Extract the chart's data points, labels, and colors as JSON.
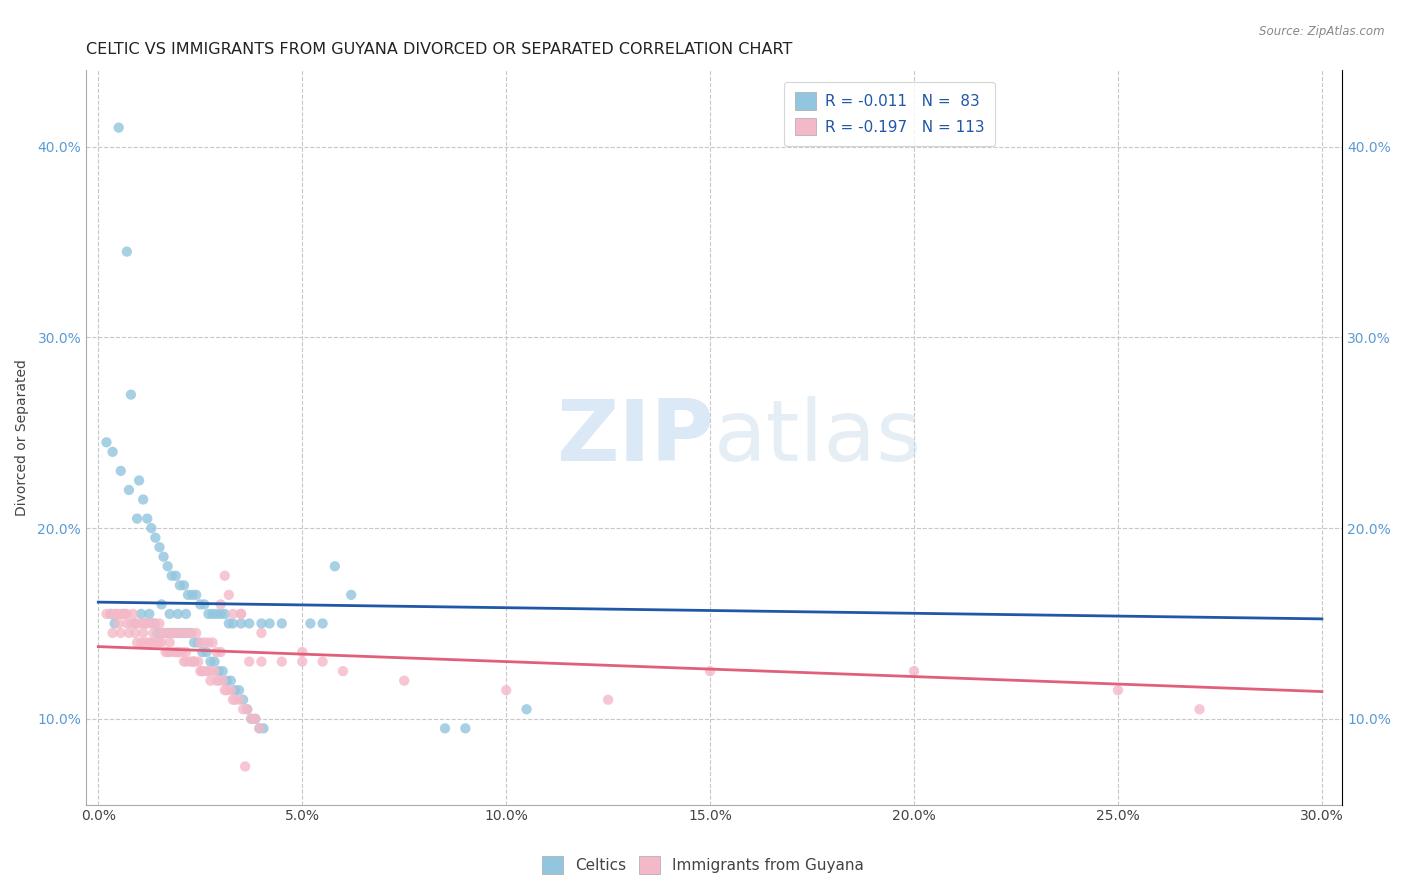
{
  "title": "CELTIC VS IMMIGRANTS FROM GUYANA DIVORCED OR SEPARATED CORRELATION CHART",
  "source": "Source: ZipAtlas.com",
  "xlabel_vals": [
    0.0,
    5.0,
    10.0,
    15.0,
    20.0,
    25.0,
    30.0
  ],
  "ylabel_vals": [
    10.0,
    20.0,
    30.0,
    40.0
  ],
  "xlim": [
    -0.3,
    30.5
  ],
  "ylim": [
    5.5,
    44.0
  ],
  "watermark_zip": "ZIP",
  "watermark_atlas": "atlas",
  "legend_celtics_r": "R = -0.011",
  "legend_celtics_n": "N =  83",
  "legend_guyana_r": "R = -0.197",
  "legend_guyana_n": "N = 113",
  "celtics_color": "#92c5de",
  "guyana_color": "#f4b9c8",
  "trend_celtics_color": "#2057a7",
  "trend_guyana_color": "#e0607a",
  "celtics_x": [
    0.5,
    0.7,
    0.8,
    1.0,
    1.1,
    1.2,
    1.3,
    1.4,
    1.5,
    1.6,
    1.7,
    1.8,
    1.9,
    2.0,
    2.1,
    2.2,
    2.3,
    2.4,
    2.5,
    2.6,
    2.7,
    2.8,
    2.9,
    3.0,
    3.1,
    3.2,
    3.3,
    3.5,
    3.7,
    4.0,
    4.2,
    4.5,
    5.2,
    5.5,
    0.3,
    0.4,
    0.6,
    0.9,
    1.05,
    1.15,
    1.25,
    1.35,
    1.45,
    1.55,
    1.65,
    1.75,
    1.85,
    1.95,
    2.05,
    2.15,
    2.25,
    2.35,
    2.45,
    2.55,
    2.65,
    2.75,
    2.85,
    2.95,
    3.05,
    3.15,
    3.25,
    3.35,
    3.45,
    3.55,
    3.65,
    3.75,
    3.85,
    3.95,
    4.05,
    8.5,
    9.0,
    10.5,
    5.8,
    6.2,
    0.2,
    0.35,
    0.55,
    0.75,
    0.95,
    1.55,
    1.75,
    1.95,
    2.15
  ],
  "celtics_y": [
    41.0,
    34.5,
    27.0,
    22.5,
    21.5,
    20.5,
    20.0,
    19.5,
    19.0,
    18.5,
    18.0,
    17.5,
    17.5,
    17.0,
    17.0,
    16.5,
    16.5,
    16.5,
    16.0,
    16.0,
    15.5,
    15.5,
    15.5,
    15.5,
    15.5,
    15.0,
    15.0,
    15.0,
    15.0,
    15.0,
    15.0,
    15.0,
    15.0,
    15.0,
    15.5,
    15.0,
    15.5,
    15.0,
    15.5,
    15.0,
    15.5,
    15.0,
    14.5,
    14.5,
    14.5,
    14.5,
    14.5,
    14.5,
    14.5,
    14.5,
    14.5,
    14.0,
    14.0,
    13.5,
    13.5,
    13.0,
    13.0,
    12.5,
    12.5,
    12.0,
    12.0,
    11.5,
    11.5,
    11.0,
    10.5,
    10.0,
    10.0,
    9.5,
    9.5,
    9.5,
    9.5,
    10.5,
    18.0,
    16.5,
    24.5,
    24.0,
    23.0,
    22.0,
    20.5,
    16.0,
    15.5,
    15.5,
    15.5
  ],
  "guyana_x": [
    0.2,
    0.3,
    0.4,
    0.5,
    0.6,
    0.7,
    0.8,
    0.9,
    1.0,
    1.1,
    1.2,
    1.3,
    1.4,
    1.5,
    1.6,
    1.7,
    1.8,
    1.9,
    2.0,
    2.1,
    2.2,
    2.3,
    2.4,
    2.5,
    2.6,
    2.7,
    2.8,
    2.9,
    3.0,
    3.1,
    3.2,
    3.3,
    3.5,
    3.7,
    4.0,
    4.5,
    5.0,
    5.5,
    7.5,
    10.0,
    12.5,
    15.0,
    20.0,
    25.0,
    27.0,
    0.35,
    0.55,
    0.75,
    0.95,
    1.05,
    1.15,
    1.25,
    1.35,
    1.45,
    1.55,
    1.65,
    1.75,
    1.85,
    1.95,
    2.05,
    2.15,
    2.25,
    2.35,
    2.45,
    2.55,
    2.65,
    2.75,
    2.85,
    2.95,
    3.05,
    3.15,
    3.25,
    3.35,
    3.45,
    3.55,
    3.65,
    3.75,
    3.85,
    3.95,
    0.45,
    0.65,
    0.85,
    1.15,
    1.35,
    1.55,
    1.75,
    1.95,
    2.15,
    2.35,
    2.55,
    2.75,
    3.0,
    3.5,
    4.0,
    5.0,
    6.0,
    0.5,
    0.7,
    0.9,
    1.1,
    1.3,
    1.5,
    1.7,
    1.9,
    2.1,
    2.3,
    2.5,
    2.7,
    2.9,
    3.1,
    3.3,
    3.6
  ],
  "guyana_y": [
    15.5,
    15.5,
    15.5,
    15.5,
    15.5,
    15.5,
    15.0,
    15.0,
    15.0,
    15.0,
    15.0,
    15.0,
    15.0,
    15.0,
    14.5,
    14.5,
    14.5,
    14.5,
    14.5,
    14.5,
    14.5,
    14.5,
    14.5,
    14.0,
    14.0,
    14.0,
    14.0,
    13.5,
    13.5,
    17.5,
    16.5,
    15.5,
    15.5,
    13.0,
    13.0,
    13.0,
    13.0,
    13.0,
    12.0,
    11.5,
    11.0,
    12.5,
    12.5,
    11.5,
    10.5,
    14.5,
    14.5,
    14.5,
    14.0,
    14.0,
    14.0,
    14.0,
    14.0,
    14.0,
    14.0,
    13.5,
    13.5,
    13.5,
    13.5,
    13.5,
    13.0,
    13.0,
    13.0,
    13.0,
    12.5,
    12.5,
    12.5,
    12.5,
    12.0,
    12.0,
    11.5,
    11.5,
    11.0,
    11.0,
    10.5,
    10.5,
    10.0,
    10.0,
    9.5,
    15.5,
    15.5,
    15.5,
    15.0,
    14.5,
    14.5,
    14.0,
    13.5,
    13.5,
    13.0,
    12.5,
    12.0,
    16.0,
    15.5,
    14.5,
    13.5,
    12.5,
    15.0,
    15.0,
    14.5,
    14.5,
    14.0,
    14.0,
    13.5,
    13.5,
    13.0,
    13.0,
    12.5,
    12.5,
    12.0,
    11.5,
    11.0,
    7.5
  ],
  "ylabel": "Divorced or Separated",
  "grid_color": "#c8c8c8",
  "background_color": "#ffffff",
  "title_fontsize": 11.5,
  "axis_label_fontsize": 10,
  "tick_fontsize": 10,
  "tick_color_blue": "#5b9bd5",
  "tick_color_dark": "#444444"
}
